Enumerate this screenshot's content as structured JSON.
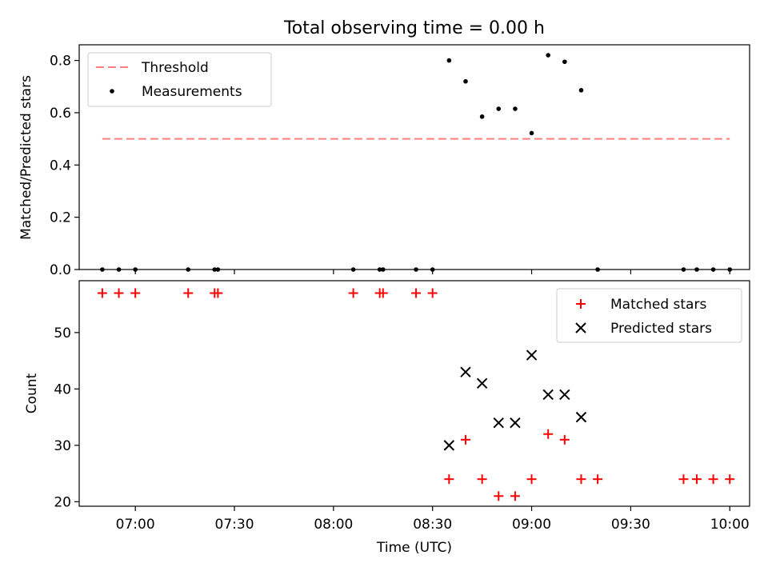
{
  "chart_data": [
    {
      "type": "scatter",
      "title": "Total observing time = 0.00 h",
      "ylabel": "Matched/Predicted stars",
      "xlim": [
        "06:43",
        "10:06"
      ],
      "ylim": [
        0,
        0.86
      ],
      "yticks": [
        0,
        0.2,
        0.4,
        0.6,
        0.8
      ],
      "ytick_labels": [
        "0.0",
        "0.2",
        "0.4",
        "0.6",
        "0.8"
      ],
      "legend_position": "top-left",
      "threshold": {
        "name": "Threshold",
        "value": 0.5,
        "color": "#ff7f7f",
        "x_start": "06:50",
        "x_end": "10:00"
      },
      "series": [
        {
          "name": "Measurements",
          "color": "#000000",
          "points": [
            [
              "06:50",
              0
            ],
            [
              "06:55",
              0
            ],
            [
              "07:00",
              0
            ],
            [
              "07:16",
              0
            ],
            [
              "07:24",
              0
            ],
            [
              "07:25",
              0
            ],
            [
              "08:06",
              0
            ],
            [
              "08:14",
              0
            ],
            [
              "08:15",
              0
            ],
            [
              "08:25",
              0
            ],
            [
              "08:30",
              0
            ],
            [
              "08:35",
              0.8
            ],
            [
              "08:40",
              0.72
            ],
            [
              "08:45",
              0.585
            ],
            [
              "08:50",
              0.615
            ],
            [
              "08:55",
              0.615
            ],
            [
              "09:00",
              0.522
            ],
            [
              "09:05",
              0.82
            ],
            [
              "09:10",
              0.795
            ],
            [
              "09:15",
              0.686
            ],
            [
              "09:20",
              0
            ],
            [
              "09:46",
              0
            ],
            [
              "09:50",
              0
            ],
            [
              "09:55",
              0
            ],
            [
              "10:00",
              0
            ]
          ]
        }
      ]
    },
    {
      "type": "scatter",
      "xlabel": "Time (UTC)",
      "ylabel": "Count",
      "xlim": [
        "06:43",
        "10:06"
      ],
      "ylim": [
        19.2,
        59.2
      ],
      "yticks": [
        20,
        30,
        40,
        50
      ],
      "xticks": [
        "07:00",
        "07:30",
        "08:00",
        "08:30",
        "09:00",
        "09:30",
        "10:00"
      ],
      "legend_position": "top-right",
      "series": [
        {
          "name": "Matched stars",
          "color": "#ff0000",
          "marker": "+",
          "points": [
            [
              "06:50",
              57
            ],
            [
              "06:55",
              57
            ],
            [
              "07:00",
              57
            ],
            [
              "07:16",
              57
            ],
            [
              "07:24",
              57
            ],
            [
              "07:25",
              57
            ],
            [
              "08:06",
              57
            ],
            [
              "08:14",
              57
            ],
            [
              "08:15",
              57
            ],
            [
              "08:25",
              57
            ],
            [
              "08:30",
              57
            ],
            [
              "08:35",
              24
            ],
            [
              "08:40",
              31
            ],
            [
              "08:45",
              24
            ],
            [
              "08:50",
              21
            ],
            [
              "08:55",
              21
            ],
            [
              "09:00",
              24
            ],
            [
              "09:05",
              32
            ],
            [
              "09:10",
              31
            ],
            [
              "09:15",
              24
            ],
            [
              "09:20",
              24
            ],
            [
              "09:46",
              24
            ],
            [
              "09:50",
              24
            ],
            [
              "09:55",
              24
            ],
            [
              "10:00",
              24
            ]
          ]
        },
        {
          "name": "Predicted stars",
          "color": "#000000",
          "marker": "x",
          "points": [
            [
              "08:35",
              30
            ],
            [
              "08:40",
              43
            ],
            [
              "08:45",
              41
            ],
            [
              "08:50",
              34
            ],
            [
              "08:55",
              34
            ],
            [
              "09:00",
              46
            ],
            [
              "09:05",
              39
            ],
            [
              "09:10",
              39
            ],
            [
              "09:15",
              35
            ]
          ]
        }
      ]
    }
  ]
}
